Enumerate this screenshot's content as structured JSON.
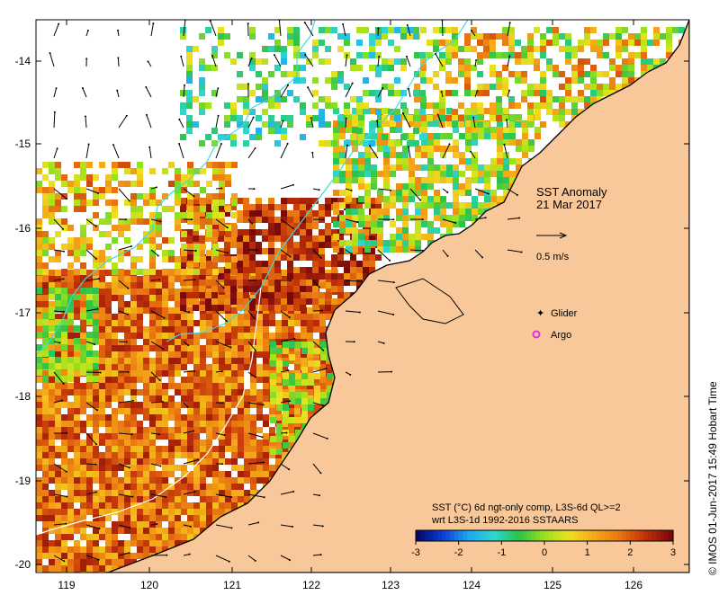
{
  "map": {
    "title": "SST Anomaly",
    "date": "21 Mar 2017",
    "current_scale_label": "0.5 m/s",
    "legend": {
      "glider_label": "Glider",
      "argo_label": "Argo",
      "glider_color": "#dd33dd",
      "argo_color": "#dd33dd"
    },
    "colorbar": {
      "caption_line1": "SST (°C) 6d ngt-only comp, L3S-6d QL>=2",
      "caption_line2": "wrt L3S-1d 1992-2016 SSTAARS",
      "ticks": [
        "-3",
        "-2",
        "-1",
        "0",
        "1",
        "2",
        "3"
      ],
      "range": [
        -3,
        3
      ],
      "colors": [
        "#08086b",
        "#0a3fd6",
        "#1ea7f0",
        "#2fd6d0",
        "#2cc24a",
        "#9be21c",
        "#f0e020",
        "#f4a818",
        "#e87410",
        "#c03008",
        "#7a0a0a"
      ]
    },
    "credit": "© IMOS 01-Jun-2017 15:49 Hobart Time",
    "lon_ticks": [
      "119",
      "120",
      "121",
      "122",
      "123",
      "124",
      "125",
      "126"
    ],
    "lat_ticks": [
      "-14",
      "-15",
      "-16",
      "-17",
      "-18",
      "-19",
      "-20"
    ],
    "land_color": "#f8c89a",
    "coast_color": "#000000",
    "isobath_200_color": "#40d8e0",
    "isobath_1000_color": "#ffffff"
  }
}
